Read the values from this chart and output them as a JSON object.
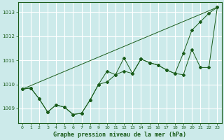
{
  "title": "Graphe pression niveau de la mer (hPa)",
  "bg_color": "#cceaea",
  "grid_color": "#aacccc",
  "line_color": "#1a5c1a",
  "xlim": [
    -0.5,
    23.5
  ],
  "ylim": [
    1008.4,
    1013.4
  ],
  "xticks": [
    0,
    1,
    2,
    3,
    4,
    5,
    6,
    7,
    8,
    9,
    10,
    11,
    12,
    13,
    14,
    15,
    16,
    17,
    18,
    19,
    20,
    21,
    22,
    23
  ],
  "yticks": [
    1009,
    1010,
    1011,
    1012,
    1013
  ],
  "ytick_labels": [
    "1009",
    "1010",
    "1011",
    "1012",
    "1013"
  ],
  "series1_x": [
    0,
    1,
    2,
    3,
    4,
    5,
    6,
    7,
    8,
    9,
    10,
    11,
    12,
    13,
    14,
    15,
    16,
    17,
    18,
    19,
    20,
    21,
    22,
    23
  ],
  "series1_y": [
    1009.8,
    1009.85,
    1009.4,
    1008.85,
    1009.15,
    1009.05,
    1008.75,
    1008.8,
    1009.35,
    1010.0,
    1010.55,
    1010.4,
    1011.1,
    1010.45,
    1011.05,
    1010.9,
    1010.8,
    1010.6,
    1010.45,
    1010.4,
    1011.45,
    1010.7,
    1010.7,
    1013.2
  ],
  "series2_x": [
    0,
    1,
    2,
    3,
    4,
    5,
    6,
    7,
    8,
    9,
    10,
    11,
    12,
    13,
    14,
    15,
    16,
    17,
    18,
    19,
    20,
    21,
    22,
    23
  ],
  "series2_y": [
    1009.8,
    1009.85,
    1009.4,
    1008.85,
    1009.15,
    1009.05,
    1008.75,
    1008.8,
    1009.35,
    1010.0,
    1010.1,
    1010.4,
    1010.55,
    1010.45,
    1011.05,
    1010.9,
    1010.8,
    1010.6,
    1010.45,
    1011.3,
    1012.25,
    1012.6,
    1012.95,
    1013.2
  ],
  "series3_x": [
    0,
    23
  ],
  "series3_y": [
    1009.8,
    1013.2
  ],
  "ylabel_fontsize": 5.5,
  "xlabel_fontsize": 6.0
}
